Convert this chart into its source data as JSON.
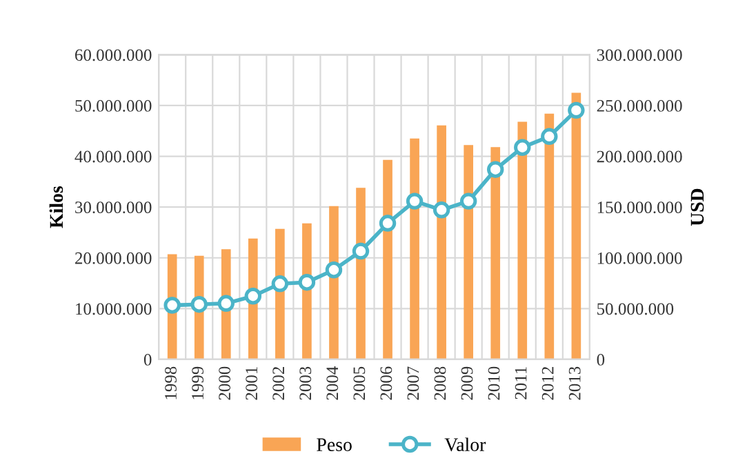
{
  "chart_data": {
    "type": "bar",
    "ylabel": "Kilos",
    "y2label": "USD",
    "categories": [
      "1998",
      "1999",
      "2000",
      "2001",
      "2002",
      "2003",
      "2004",
      "2005",
      "2006",
      "2007",
      "2008",
      "2009",
      "2010",
      "2011",
      "2012",
      "2013"
    ],
    "series": [
      {
        "name": "Peso",
        "color": "#f9a555",
        "values": [
          20700000,
          20400000,
          21700000,
          23800000,
          25700000,
          26800000,
          30200000,
          33800000,
          39300000,
          43500000,
          46100000,
          42200000,
          41800000,
          46800000,
          48400000,
          52500000
        ]
      },
      {
        "name": "Valor",
        "type": "line",
        "axis": "y2",
        "color": "#4bb4c8",
        "marker": "circle",
        "values": [
          53300000,
          54200000,
          55100000,
          62300000,
          74500000,
          75900000,
          88100000,
          106600000,
          134100000,
          155800000,
          147200000,
          155800000,
          187000000,
          208700000,
          219500000,
          245300000
        ]
      }
    ],
    "ylim": [
      0,
      60000000
    ],
    "yticks": [
      {
        "value": 0,
        "label": "0"
      },
      {
        "value": 10000000,
        "label": "10.000.000"
      },
      {
        "value": 20000000,
        "label": "20.000.000"
      },
      {
        "value": 30000000,
        "label": "30.000.000"
      },
      {
        "value": 40000000,
        "label": "40.000.000"
      },
      {
        "value": 50000000,
        "label": "50.000.000"
      },
      {
        "value": 60000000,
        "label": "60.000.000"
      }
    ],
    "y2lim": [
      0,
      300000000
    ],
    "y2ticks": [
      {
        "value": 0,
        "label": "0"
      },
      {
        "value": 50000000,
        "label": "50.000.000"
      },
      {
        "value": 100000000,
        "label": "100.000.000"
      },
      {
        "value": 150000000,
        "label": "150.000.000"
      },
      {
        "value": 200000000,
        "label": "200.000.000"
      },
      {
        "value": 250000000,
        "label": "250.000.000"
      },
      {
        "value": 300000000,
        "label": "300.000.000"
      }
    ],
    "grid": true,
    "legend": "bottom"
  }
}
